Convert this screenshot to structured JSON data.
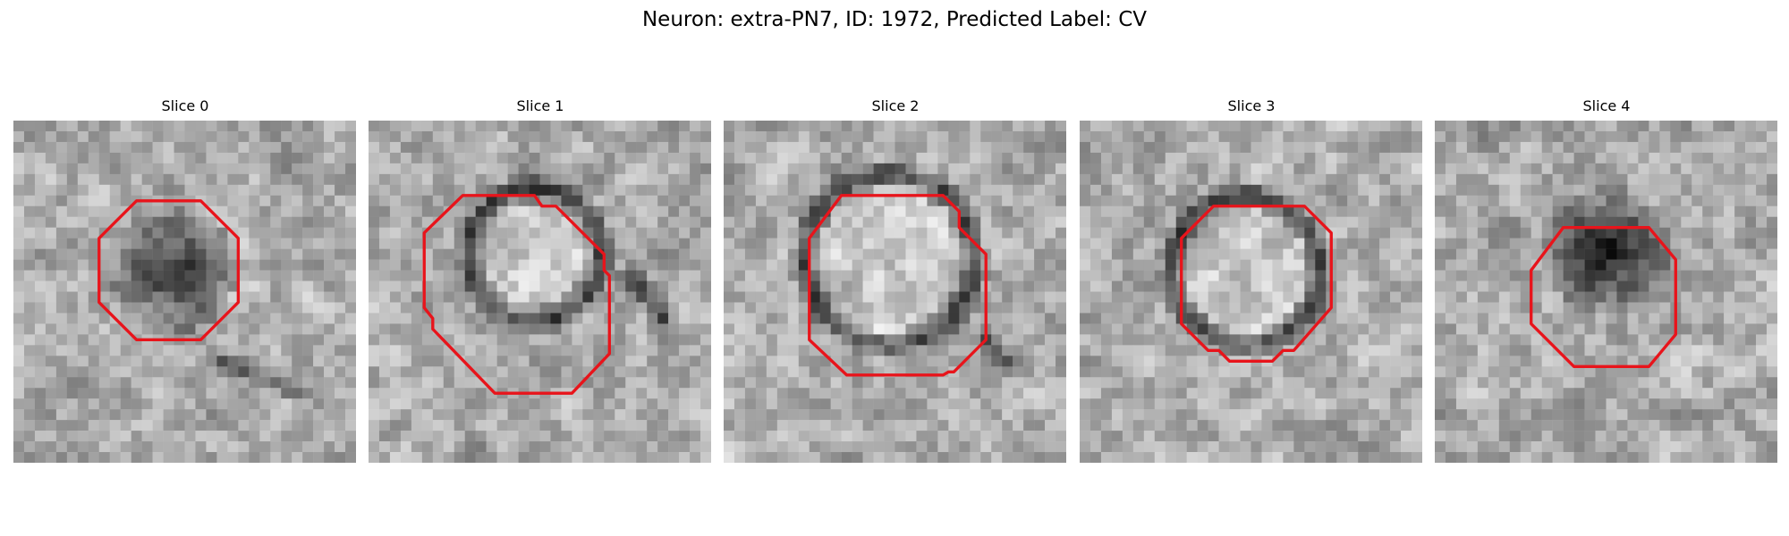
{
  "figure": {
    "title": "Neuron: extra-PN7, ID: 1972, Predicted Label: CV",
    "contour_color": "#e8141b"
  },
  "panels": [
    {
      "title": "Slice 0",
      "image": "grayscale-em-slice"
    },
    {
      "title": "Slice 1",
      "image": "grayscale-em-slice"
    },
    {
      "title": "Slice 2",
      "image": "grayscale-em-slice"
    },
    {
      "title": "Slice 3",
      "image": "grayscale-em-slice"
    },
    {
      "title": "Slice 4",
      "image": "grayscale-em-slice"
    }
  ]
}
